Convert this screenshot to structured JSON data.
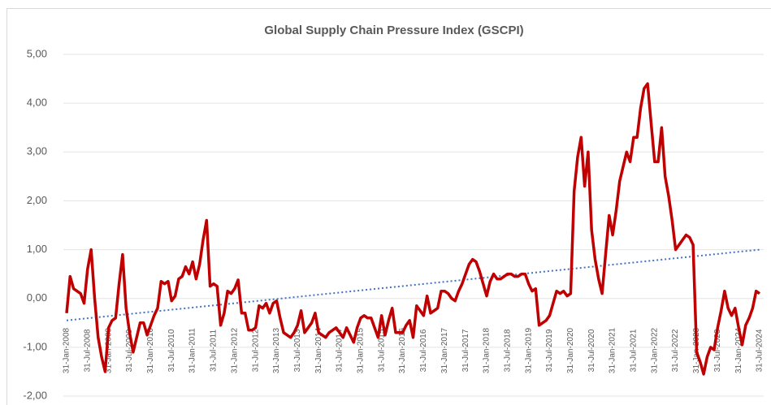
{
  "chart_data": {
    "type": "line",
    "title": "Global Supply Chain Pressure Index (GSCPI)",
    "categories": [
      "31-Jan-2008",
      null,
      null,
      null,
      null,
      null,
      "31-Jul-2008",
      null,
      null,
      null,
      null,
      null,
      "31-Jan-2009",
      null,
      null,
      null,
      null,
      null,
      "31-Jul-2009",
      null,
      null,
      null,
      null,
      null,
      "31-Jan-2010",
      null,
      null,
      null,
      null,
      null,
      "31-Jul-2010",
      null,
      null,
      null,
      null,
      null,
      "31-Jan-2011",
      null,
      null,
      null,
      null,
      null,
      "31-Jul-2011",
      null,
      null,
      null,
      null,
      null,
      "31-Jan-2012",
      null,
      null,
      null,
      null,
      null,
      "31-Jul-2012",
      null,
      null,
      null,
      null,
      null,
      "31-Jan-2013",
      null,
      null,
      null,
      null,
      null,
      "31-Jul-2013",
      null,
      null,
      null,
      null,
      null,
      "31-Jan-2014",
      null,
      null,
      null,
      null,
      null,
      "31-Jul-2014",
      null,
      null,
      null,
      null,
      null,
      "31-Jan-2015",
      null,
      null,
      null,
      null,
      null,
      "31-Jul-2015",
      null,
      null,
      null,
      null,
      null,
      "31-Jan-2016",
      null,
      null,
      null,
      null,
      null,
      "31-Jul-2016",
      null,
      null,
      null,
      null,
      null,
      "31-Jan-2017",
      null,
      null,
      null,
      null,
      null,
      "31-Jul-2017",
      null,
      null,
      null,
      null,
      null,
      "31-Jan-2018",
      null,
      null,
      null,
      null,
      null,
      "31-Jul-2018",
      null,
      null,
      null,
      null,
      null,
      "31-Jan-2019",
      null,
      null,
      null,
      null,
      null,
      "31-Jul-2019",
      null,
      null,
      null,
      null,
      null,
      "31-Jan-2020",
      null,
      null,
      null,
      null,
      null,
      "31-Jul-2020",
      null,
      null,
      null,
      null,
      null,
      "31-Jan-2021",
      null,
      null,
      null,
      null,
      null,
      "31-Jul-2021",
      null,
      null,
      null,
      null,
      null,
      "31-Jan-2022",
      null,
      null,
      null,
      null,
      null,
      "31-Jul-2022",
      null,
      null,
      null,
      null,
      null,
      "31-Jan-2023",
      null,
      null,
      null,
      null,
      null,
      "31-Jul-2023",
      null,
      null,
      null,
      null,
      null,
      "31-Jan-2024",
      null,
      null,
      null,
      null,
      null,
      "31-Jul-2024"
    ],
    "series": [
      {
        "color": "#c00000",
        "values": [
          -0.3,
          0.45,
          0.2,
          0.15,
          0.1,
          -0.1,
          0.6,
          1.0,
          0.0,
          -0.8,
          -1.2,
          -1.5,
          -0.6,
          -0.45,
          -0.4,
          0.3,
          0.9,
          -0.2,
          -0.7,
          -1.1,
          -0.8,
          -0.5,
          -0.5,
          -0.75,
          -0.55,
          -0.35,
          -0.2,
          0.35,
          0.3,
          0.35,
          -0.05,
          0.05,
          0.4,
          0.45,
          0.65,
          0.5,
          0.75,
          0.4,
          0.7,
          1.2,
          1.6,
          0.25,
          0.3,
          0.25,
          -0.55,
          -0.3,
          0.15,
          0.1,
          0.2,
          0.38,
          -0.3,
          -0.3,
          -0.65,
          -0.65,
          -0.6,
          -0.15,
          -0.2,
          -0.1,
          -0.3,
          -0.1,
          -0.05,
          -0.4,
          -0.7,
          -0.75,
          -0.8,
          -0.7,
          -0.55,
          -0.25,
          -0.7,
          -0.6,
          -0.5,
          -0.3,
          -0.7,
          -0.75,
          -0.8,
          -0.7,
          -0.65,
          -0.6,
          -0.7,
          -0.8,
          -0.6,
          -0.75,
          -0.9,
          -0.6,
          -0.4,
          -0.35,
          -0.4,
          -0.4,
          -0.6,
          -0.8,
          -0.35,
          -0.75,
          -0.45,
          -0.2,
          -0.7,
          -0.7,
          -0.7,
          -0.55,
          -0.45,
          -0.8,
          -0.15,
          -0.25,
          -0.35,
          0.05,
          -0.3,
          -0.25,
          -0.2,
          0.15,
          0.15,
          0.1,
          0.0,
          -0.05,
          0.15,
          0.3,
          0.5,
          0.7,
          0.8,
          0.75,
          0.55,
          0.3,
          0.05,
          0.35,
          0.5,
          0.4,
          0.4,
          0.45,
          0.5,
          0.5,
          0.45,
          0.45,
          0.5,
          0.5,
          0.3,
          0.15,
          0.2,
          -0.55,
          -0.5,
          -0.45,
          -0.35,
          -0.1,
          0.15,
          0.1,
          0.15,
          0.05,
          0.1,
          2.2,
          2.9,
          3.3,
          2.3,
          3.0,
          1.4,
          0.8,
          0.4,
          0.1,
          0.9,
          1.7,
          1.3,
          1.8,
          2.4,
          2.7,
          3.0,
          2.8,
          3.3,
          3.3,
          3.9,
          4.3,
          4.4,
          3.6,
          2.8,
          2.8,
          3.5,
          2.5,
          2.1,
          1.6,
          1.0,
          1.1,
          1.2,
          1.3,
          1.25,
          1.1,
          -1.1,
          -1.3,
          -1.55,
          -1.2,
          -1.0,
          -1.05,
          -0.6,
          -0.25,
          0.15,
          -0.2,
          -0.35,
          -0.2,
          -0.6,
          -0.95,
          -0.55,
          -0.4,
          -0.2,
          0.15,
          0.1
        ]
      }
    ],
    "trendline": {
      "color": "#4472c4",
      "values": [
        -0.45,
        1.0
      ]
    },
    "ylim": [
      -2,
      5
    ],
    "yticks": [
      {
        "value": -2,
        "label": "-2,00"
      },
      {
        "value": -1,
        "label": "-1,00"
      },
      {
        "value": 0,
        "label": "0,00"
      },
      {
        "value": 1,
        "label": "1,00"
      },
      {
        "value": 2,
        "label": "2,00"
      },
      {
        "value": 3,
        "label": "3,00"
      },
      {
        "value": 4,
        "label": "4,00"
      },
      {
        "value": 5,
        "label": "5,00"
      }
    ],
    "grid": true
  }
}
